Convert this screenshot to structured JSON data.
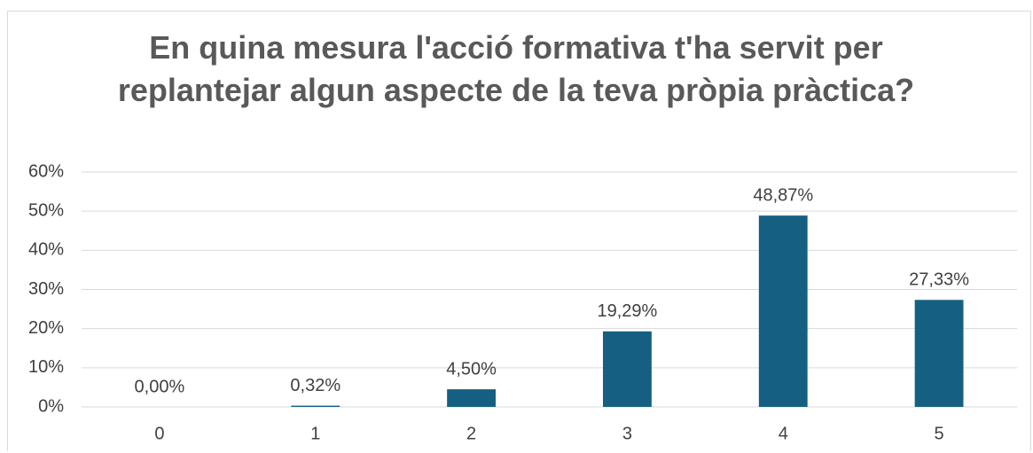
{
  "chart_data": {
    "type": "bar",
    "title": "En quina mesura l'acció formativa t'ha servit per replantejar algun aspecte de la teva pròpia pràctica?",
    "categories": [
      "0",
      "1",
      "2",
      "3",
      "4",
      "5"
    ],
    "values": [
      0.0,
      0.32,
      4.5,
      19.29,
      48.87,
      27.33
    ],
    "value_labels": [
      "0,00%",
      "0,32%",
      "4,50%",
      "19,29%",
      "48,87%",
      "27,33%"
    ],
    "color": "#156082",
    "ylim": [
      0,
      60
    ],
    "yticks": [
      {
        "value": 0,
        "label": "0%"
      },
      {
        "value": 10,
        "label": "10%"
      },
      {
        "value": 20,
        "label": "20%"
      },
      {
        "value": 30,
        "label": "30%"
      },
      {
        "value": 40,
        "label": "40%"
      },
      {
        "value": 50,
        "label": "50%"
      },
      {
        "value": 60,
        "label": "60%"
      }
    ],
    "grid": true
  }
}
